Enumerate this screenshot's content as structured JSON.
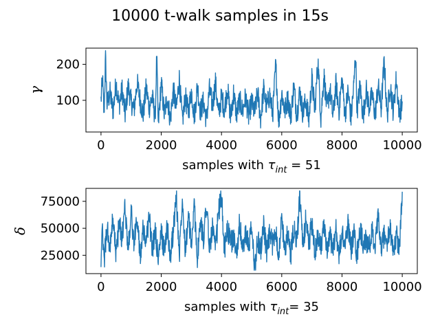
{
  "figure": {
    "title": "10000 t-walk samples in 15s"
  },
  "chart_data": [
    {
      "type": "line",
      "ylabel": "γ",
      "xlabel": {
        "prefix": "samples with ",
        "tau": "τ",
        "sub": "int",
        "suffix": " =  51"
      },
      "xlim": [
        -500,
        10500
      ],
      "ylim": [
        12,
        245
      ],
      "xticks": [
        0,
        2000,
        4000,
        6000,
        8000,
        10000
      ],
      "yticks": [
        100,
        200
      ],
      "color": "#1f77b4",
      "n_samples": 10000,
      "series": [
        {
          "x": [
            0,
            50,
            100,
            150,
            200,
            300,
            400,
            500,
            600,
            700,
            800,
            900,
            1000,
            1100,
            1200,
            1300,
            1400,
            1500,
            1600,
            1700,
            1800,
            1850,
            1900,
            2000,
            2100,
            2200,
            2300,
            2400,
            2500,
            2600,
            2700,
            2800,
            2900,
            3000,
            3100,
            3200,
            3300,
            3400,
            3500,
            3600,
            3700,
            3800,
            3900,
            4000,
            4100,
            4200,
            4300,
            4400,
            4500,
            4600,
            4700,
            4800,
            4900,
            5000,
            5100,
            5200,
            5300,
            5400,
            5500,
            5600,
            5700,
            5800,
            5900,
            6000,
            6100,
            6200,
            6300,
            6400,
            6500,
            6600,
            6700,
            6800,
            6900,
            7000,
            7100,
            7200,
            7300,
            7400,
            7500,
            7600,
            7700,
            7800,
            7900,
            8000,
            8100,
            8200,
            8300,
            8400,
            8450,
            8500,
            8600,
            8700,
            8800,
            8900,
            9000,
            9100,
            9200,
            9300,
            9400,
            9500,
            9600,
            9700,
            9800,
            9900,
            10000
          ],
          "y": [
            100,
            160,
            60,
            220,
            90,
            120,
            70,
            150,
            85,
            130,
            60,
            140,
            95,
            75,
            150,
            100,
            60,
            135,
            80,
            110,
            50,
            225,
            30,
            150,
            60,
            110,
            45,
            130,
            75,
            160,
            40,
            110,
            65,
            125,
            55,
            140,
            70,
            95,
            45,
            130,
            85,
            150,
            60,
            110,
            75,
            135,
            50,
            120,
            60,
            100,
            70,
            110,
            55,
            95,
            65,
            120,
            50,
            130,
            80,
            115,
            60,
            200,
            40,
            120,
            70,
            105,
            55,
            140,
            60,
            125,
            65,
            100,
            45,
            160,
            70,
            210,
            50,
            170,
            75,
            130,
            55,
            145,
            70,
            160,
            60,
            125,
            50,
            150,
            235,
            70,
            140,
            55,
            130,
            80,
            115,
            60,
            140,
            75,
            210,
            55,
            145,
            70,
            160,
            65,
            90
          ]
        }
      ]
    },
    {
      "type": "line",
      "ylabel": "δ",
      "xlabel": {
        "prefix": "samples with ",
        "tau": "τ",
        "sub": "int",
        "suffix": "= 35"
      },
      "xlim": [
        -500,
        10500
      ],
      "ylim": [
        8000,
        87000
      ],
      "xticks": [
        0,
        2000,
        4000,
        6000,
        8000,
        10000
      ],
      "yticks": [
        25000,
        50000,
        75000
      ],
      "color": "#1f77b4",
      "n_samples": 10000,
      "series": [
        {
          "x": [
            0,
            50,
            100,
            200,
            300,
            400,
            500,
            600,
            700,
            800,
            900,
            1000,
            1100,
            1200,
            1300,
            1400,
            1500,
            1600,
            1700,
            1800,
            1900,
            2000,
            2100,
            2200,
            2300,
            2400,
            2500,
            2600,
            2700,
            2800,
            2900,
            3000,
            3100,
            3200,
            3300,
            3400,
            3500,
            3600,
            3700,
            3800,
            3900,
            4000,
            4100,
            4200,
            4300,
            4400,
            4500,
            4600,
            4700,
            4800,
            4900,
            5000,
            5100,
            5200,
            5300,
            5400,
            5500,
            5600,
            5700,
            5800,
            5900,
            6000,
            6100,
            6200,
            6300,
            6400,
            6500,
            6600,
            6700,
            6800,
            6900,
            7000,
            7100,
            7200,
            7300,
            7400,
            7500,
            7600,
            7700,
            7800,
            7900,
            8000,
            8100,
            8200,
            8300,
            8400,
            8500,
            8600,
            8700,
            8800,
            8900,
            9000,
            9100,
            9200,
            9300,
            9400,
            9500,
            9600,
            9700,
            9800,
            9900,
            10000
          ],
          "y": [
            25000,
            45000,
            20000,
            50000,
            30000,
            60000,
            25000,
            55000,
            40000,
            70000,
            30000,
            65000,
            35000,
            60000,
            25000,
            50000,
            38000,
            62000,
            28000,
            50000,
            20000,
            45000,
            30000,
            52000,
            22000,
            48000,
            80000,
            25000,
            81000,
            30000,
            60000,
            35000,
            70000,
            22000,
            55000,
            40000,
            75000,
            30000,
            52000,
            28000,
            65000,
            79000,
            30000,
            50000,
            35000,
            42000,
            28000,
            55000,
            30000,
            45000,
            33000,
            50000,
            12000,
            40000,
            30000,
            55000,
            25000,
            45000,
            35000,
            50000,
            25000,
            60000,
            30000,
            45000,
            25000,
            50000,
            35000,
            82000,
            30000,
            60000,
            35000,
            55000,
            25000,
            45000,
            35000,
            50000,
            28000,
            42000,
            32000,
            48000,
            25000,
            45000,
            35000,
            55000,
            30000,
            45000,
            25000,
            50000,
            35000,
            40000,
            30000,
            48000,
            32000,
            60000,
            30000,
            45000,
            35000,
            50000,
            25000,
            45000,
            30000,
            82000
          ]
        }
      ]
    }
  ]
}
